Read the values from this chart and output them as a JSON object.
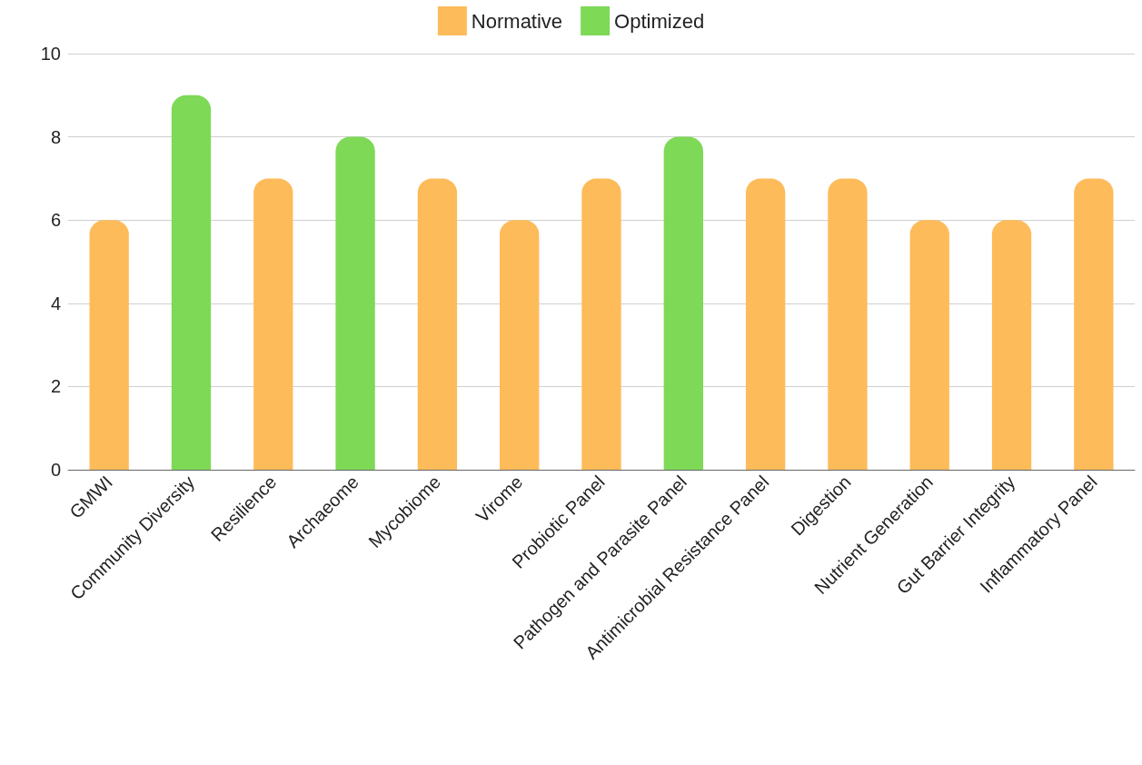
{
  "chart_data": {
    "type": "bar",
    "categories": [
      "GMWI",
      "Community Diversity",
      "Resilience",
      "Archaeome",
      "Mycobiome",
      "Virome",
      "Probiotic Panel",
      "Pathogen and Parasite Panel",
      "Antimicrobial Resistance Panel",
      "Digestion",
      "Nutrient Generation",
      "Gut Barrier Integrity",
      "Inflammatory Panel"
    ],
    "series": [
      {
        "name": "Normative",
        "color": "#fdbb5a",
        "values": [
          6,
          null,
          7,
          null,
          7,
          6,
          7,
          null,
          7,
          7,
          6,
          6,
          7
        ]
      },
      {
        "name": "Optimized",
        "color": "#7ed957",
        "values": [
          null,
          9,
          null,
          8,
          null,
          null,
          null,
          8,
          null,
          null,
          null,
          null,
          null
        ]
      }
    ],
    "ylim": [
      0,
      10
    ],
    "yticks": [
      0,
      2,
      4,
      6,
      8,
      10
    ],
    "grid": "y",
    "legend": "top"
  }
}
